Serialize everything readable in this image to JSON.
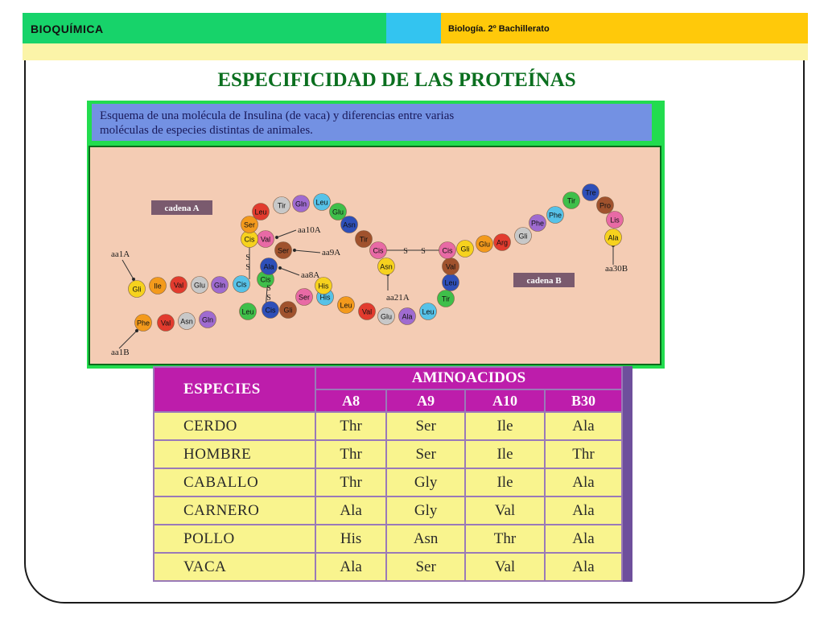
{
  "header": {
    "left": "BIOQUÍMICA",
    "right": "Biología. 2º Bachillerato"
  },
  "title": "ESPECIFICIDAD DE LAS PROTEÍNAS",
  "scheme": {
    "caption_line1": "Esquema de una molécula de Insulina (de vaca) y diferencias entre varias",
    "caption_line2": "moléculas de especies distintas de animales.",
    "chain_a_label": "cadena A",
    "chain_b_label": "cadena B",
    "annotations": {
      "aa1A": "aa1A",
      "aa10A": "aa10A",
      "aa9A": "aa9A",
      "aa8A": "aa8A",
      "aa21A": "aa21A",
      "aa1B": "aa1B",
      "aa30B": "aa30B"
    },
    "residues": [
      "Gli",
      "Ile",
      "Val",
      "Glu",
      "Gln",
      "Cis",
      "Cis",
      "Ala",
      "Ser",
      "Val",
      "Cis",
      "Ser",
      "Leu",
      "Tir",
      "Gln",
      "Leu",
      "Glu",
      "Asn",
      "Tir",
      "Cis",
      "Asn",
      "Phe",
      "Val",
      "Asn",
      "Gln",
      "His",
      "Leu",
      "Cis",
      "Gli",
      "Ser",
      "His",
      "Leu",
      "Val",
      "Glu",
      "Ala",
      "Leu",
      "Tir",
      "Leu",
      "Val",
      "Cis",
      "Gli",
      "Glu",
      "Arg",
      "Gli",
      "Phe",
      "Phe",
      "Tir",
      "Tre",
      "Pro",
      "Lis",
      "Ala"
    ],
    "bond_label": "S"
  },
  "table": {
    "col_species": "ESPECIES",
    "group_header": "AMINOACIDOS",
    "columns": [
      "A8",
      "A9",
      "A10",
      "B30"
    ],
    "rows": [
      {
        "species": "CERDO",
        "values": [
          "Thr",
          "Ser",
          "Ile",
          "Ala"
        ]
      },
      {
        "species": "HOMBRE",
        "values": [
          "Thr",
          "Ser",
          "Ile",
          "Thr"
        ]
      },
      {
        "species": "CABALLO",
        "values": [
          "Thr",
          "Gly",
          "Ile",
          "Ala"
        ]
      },
      {
        "species": "CARNERO",
        "values": [
          "Ala",
          "Gly",
          "Val",
          "Ala"
        ]
      },
      {
        "species": "POLLO",
        "values": [
          "His",
          "Asn",
          "Thr",
          "Ala"
        ]
      },
      {
        "species": "VACA",
        "values": [
          "Ala",
          "Ser",
          "Val",
          "Ala"
        ]
      }
    ]
  }
}
